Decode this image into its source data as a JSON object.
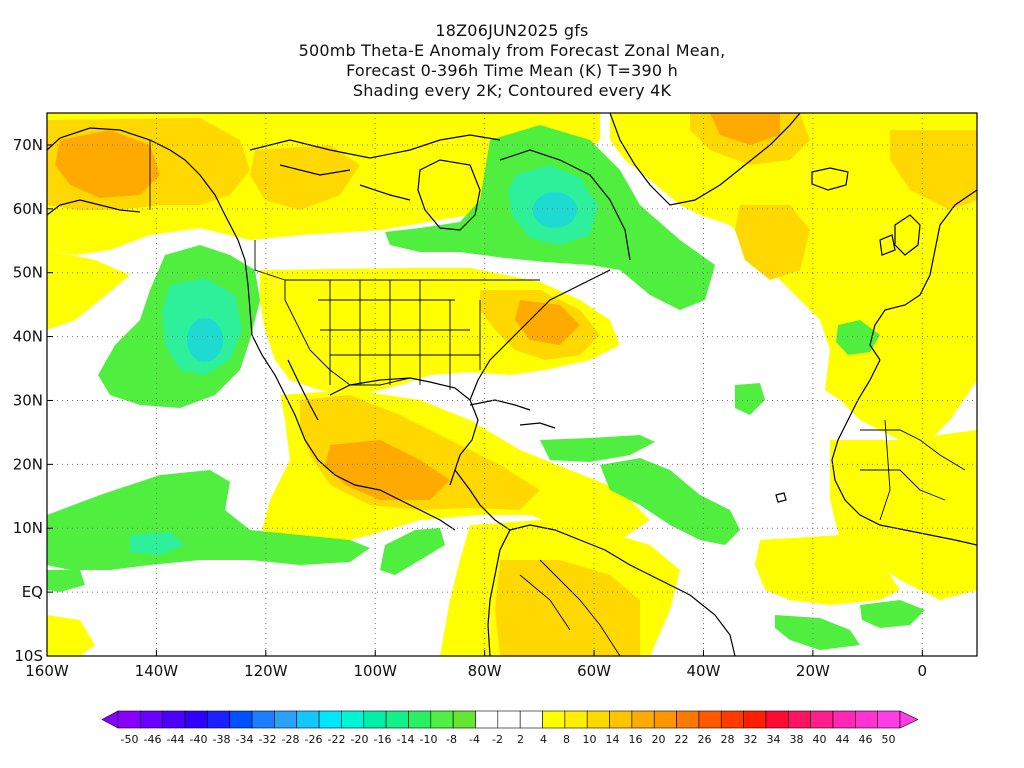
{
  "title": {
    "line1": "18Z06JUN2025 gfs",
    "line2": "500mb Theta-E Anomaly from Forecast Zonal Mean,",
    "line3": "Forecast 0-396h Time Mean (K) T=390 h",
    "line4": "Shading every 2K; Contoured every 4K"
  },
  "map": {
    "lat_labels": [
      "70N",
      "60N",
      "50N",
      "40N",
      "30N",
      "20N",
      "10N",
      "EQ",
      "10S"
    ],
    "lon_labels": [
      "160W",
      "140W",
      "120W",
      "100W",
      "80W",
      "60W",
      "40W",
      "20W",
      "0"
    ],
    "lon_range": [
      -160,
      10
    ],
    "lat_range": [
      -10,
      75
    ]
  },
  "colorbar": {
    "labels": [
      "-50",
      "-46",
      "-44",
      "-40",
      "-38",
      "-34",
      "-32",
      "-28",
      "-26",
      "-22",
      "-20",
      "-16",
      "-14",
      "-10",
      "-8",
      "-4",
      "-2",
      "2",
      "4",
      "8",
      "10",
      "14",
      "16",
      "20",
      "22",
      "26",
      "28",
      "32",
      "34",
      "38",
      "40",
      "44",
      "46",
      "50"
    ],
    "colors": [
      "#8a00ff",
      "#6a00ff",
      "#4d00ff",
      "#3000ff",
      "#1a20ff",
      "#0050ff",
      "#1d7dff",
      "#2aa0ff",
      "#14c8ff",
      "#00e6ff",
      "#00f5d2",
      "#00f0a8",
      "#14f08c",
      "#28f064",
      "#4ef044",
      "#64e632",
      "#ffffff",
      "#ffffff",
      "#ffffff",
      "#ffff00",
      "#ffee00",
      "#ffd800",
      "#ffc400",
      "#ffaa00",
      "#ff9600",
      "#ff7800",
      "#ff5a00",
      "#ff3c00",
      "#ff1e00",
      "#ff0a32",
      "#ff1464",
      "#ff1e8c",
      "#ff28b4",
      "#ff32d2",
      "#ff3ce6"
    ]
  },
  "shading": {
    "green": "#50ef3f",
    "cyan_green": "#2ef09a",
    "yellow": "#ffff00",
    "light_orange": "#ffd800",
    "orange": "#ffaa00"
  }
}
